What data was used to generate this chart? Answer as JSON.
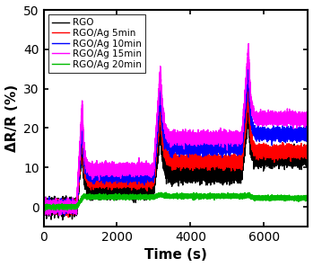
{
  "xlabel": "Time (s)",
  "ylabel": "ΔR/R (%)",
  "xlim": [
    0,
    7200
  ],
  "ylim": [
    -5,
    50
  ],
  "yticks": [
    0,
    10,
    20,
    30,
    40,
    50
  ],
  "xticks": [
    0,
    2000,
    4000,
    6000
  ],
  "series": [
    {
      "label": "RGO",
      "color": "#000000",
      "lw": 1.0
    },
    {
      "label": "RGO/Ag 5min",
      "color": "#ff0000",
      "lw": 1.0
    },
    {
      "label": "RGO/Ag 10min",
      "color": "#0000ff",
      "lw": 1.0
    },
    {
      "label": "RGO/Ag 15min",
      "color": "#ff00ff",
      "lw": 1.0
    },
    {
      "label": "RGO/Ag 20min",
      "color": "#00bb00",
      "lw": 1.0
    }
  ],
  "profiles": [
    {
      "name": "RGO",
      "noise": 1.0,
      "base0": 0.0,
      "cycle1": {
        "t_rise_start": 900,
        "t_rise_end": 1050,
        "peak": 15.5,
        "t_drop_end": 1250,
        "plateau": 4.5
      },
      "between12": 4.5,
      "cycle2": {
        "t_rise_start": 3000,
        "t_rise_end": 3180,
        "peak": 19.5,
        "t_drop_end": 3450,
        "plateau": 8.5
      },
      "between23": 8.5,
      "cycle3": {
        "t_rise_start": 5400,
        "t_rise_end": 5580,
        "peak": 24.5,
        "t_drop_end": 5780,
        "plateau": 12.5
      },
      "end_val": 12.5
    },
    {
      "name": "RGO/Ag 5min",
      "noise": 0.7,
      "base0": 0.0,
      "cycle1": {
        "t_rise_start": 900,
        "t_rise_end": 1050,
        "peak": 18.0,
        "t_drop_end": 1250,
        "plateau": 6.5
      },
      "between12": 6.5,
      "cycle2": {
        "t_rise_start": 3000,
        "t_rise_end": 3180,
        "peak": 25.5,
        "t_drop_end": 3450,
        "plateau": 11.5
      },
      "between23": 11.5,
      "cycle3": {
        "t_rise_start": 5400,
        "t_rise_end": 5580,
        "peak": 29.0,
        "t_drop_end": 5780,
        "plateau": 14.0
      },
      "end_val": 14.0
    },
    {
      "name": "RGO/Ag 10min",
      "noise": 0.7,
      "base0": 0.0,
      "cycle1": {
        "t_rise_start": 900,
        "t_rise_end": 1050,
        "peak": 21.0,
        "t_drop_end": 1250,
        "plateau": 8.0
      },
      "between12": 8.0,
      "cycle2": {
        "t_rise_start": 3000,
        "t_rise_end": 3180,
        "peak": 29.0,
        "t_drop_end": 3450,
        "plateau": 15.0
      },
      "between23": 15.0,
      "cycle3": {
        "t_rise_start": 5400,
        "t_rise_end": 5580,
        "peak": 34.5,
        "t_drop_end": 5780,
        "plateau": 18.5
      },
      "end_val": 18.5
    },
    {
      "name": "RGO/Ag 15min",
      "noise": 0.7,
      "base0": 0.0,
      "cycle1": {
        "t_rise_start": 900,
        "t_rise_end": 1050,
        "peak": 25.5,
        "t_drop_end": 1250,
        "plateau": 9.5
      },
      "between12": 9.5,
      "cycle2": {
        "t_rise_start": 3000,
        "t_rise_end": 3180,
        "peak": 34.5,
        "t_drop_end": 3450,
        "plateau": 17.5
      },
      "between23": 17.5,
      "cycle3": {
        "t_rise_start": 5400,
        "t_rise_end": 5580,
        "peak": 40.0,
        "t_drop_end": 5780,
        "plateau": 22.5
      },
      "end_val": 22.5
    },
    {
      "name": "RGO/Ag 20min",
      "noise": 0.25,
      "base0": 0.0,
      "cycle1": {
        "t_rise_start": 900,
        "t_rise_end": 1100,
        "peak": 2.8,
        "t_drop_end": 1250,
        "plateau": 2.5
      },
      "between12": 2.5,
      "cycle2": {
        "t_rise_start": 3000,
        "t_rise_end": 3200,
        "peak": 3.2,
        "t_drop_end": 3450,
        "plateau": 2.7
      },
      "between23": 2.7,
      "cycle3": {
        "t_rise_start": 5400,
        "t_rise_end": 5600,
        "peak": 3.0,
        "t_drop_end": 5780,
        "plateau": 2.3
      },
      "end_val": 2.0
    }
  ]
}
